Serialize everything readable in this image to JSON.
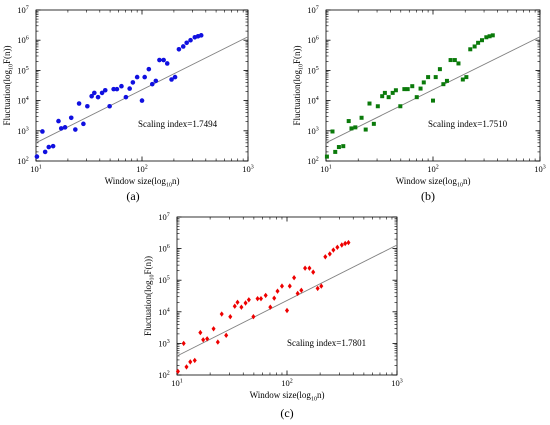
{
  "colors": {
    "axis": "#000000",
    "fit_line": "#808080"
  },
  "chart_data": [
    {
      "id": "a",
      "type": "scatter",
      "panel_label": "(a)",
      "xlabel_base": "Window size(log",
      "xlabel_sub": "10",
      "xlabel_tail": "n)",
      "ylabel_base": "Fluctuation(log",
      "ylabel_sub": "10",
      "ylabel_tail": "F(n))",
      "annotation": "Scaling index=1.7494",
      "xscale": "log",
      "yscale": "log",
      "xlim": [
        10,
        1000
      ],
      "ylim": [
        100,
        10000000
      ],
      "x_ticks": [
        {
          "base": "10",
          "exp": "1"
        },
        {
          "base": "10",
          "exp": "2"
        },
        {
          "base": "10",
          "exp": "3"
        }
      ],
      "y_ticks": [
        {
          "base": "10",
          "exp": "2"
        },
        {
          "base": "10",
          "exp": "3"
        },
        {
          "base": "10",
          "exp": "4"
        },
        {
          "base": "10",
          "exp": "5"
        },
        {
          "base": "10",
          "exp": "6"
        },
        {
          "base": "10",
          "exp": "7"
        }
      ],
      "marker": "circle",
      "color": "#1010e0",
      "fit": {
        "x": [
          10,
          1000
        ],
        "y": [
          400,
          1300000
        ]
      },
      "points": [
        [
          10.2,
          140
        ],
        [
          11.5,
          950
        ],
        [
          12.2,
          200
        ],
        [
          13.2,
          290
        ],
        [
          14.5,
          310
        ],
        [
          16.3,
          2100
        ],
        [
          17.3,
          1200
        ],
        [
          18.8,
          1300
        ],
        [
          21.5,
          2700
        ],
        [
          23.5,
          1100
        ],
        [
          25.5,
          8000
        ],
        [
          28,
          1700
        ],
        [
          30.5,
          6500
        ],
        [
          33.5,
          14000
        ],
        [
          35.5,
          18000
        ],
        [
          38.5,
          13000
        ],
        [
          42,
          18000
        ],
        [
          45,
          22000
        ],
        [
          49.5,
          6500
        ],
        [
          54,
          24000
        ],
        [
          58,
          24000
        ],
        [
          64,
          30000
        ],
        [
          70.5,
          13000
        ],
        [
          76.5,
          25000
        ],
        [
          82,
          40000
        ],
        [
          90,
          60000
        ],
        [
          100,
          10000
        ],
        [
          106,
          60000
        ],
        [
          116,
          110000
        ],
        [
          125,
          35000
        ],
        [
          135,
          45000
        ],
        [
          146,
          220000
        ],
        [
          160,
          220000
        ],
        [
          173,
          170000
        ],
        [
          190,
          50000
        ],
        [
          205,
          60000
        ],
        [
          223,
          500000
        ],
        [
          245,
          620000
        ],
        [
          264,
          820000
        ],
        [
          287,
          1000000
        ],
        [
          315,
          1250000
        ],
        [
          338,
          1350000
        ],
        [
          362,
          1450000
        ]
      ]
    },
    {
      "id": "b",
      "type": "scatter",
      "panel_label": "(b)",
      "xlabel_base": "Window size(log",
      "xlabel_sub": "10",
      "xlabel_tail": "n)",
      "ylabel_base": "Fluctuation(log",
      "ylabel_sub": "10",
      "ylabel_tail": "F(n))",
      "annotation": "Scaling index=1.7510",
      "xscale": "log",
      "yscale": "log",
      "xlim": [
        10,
        1000
      ],
      "ylim": [
        100,
        10000000
      ],
      "x_ticks": [
        {
          "base": "10",
          "exp": "1"
        },
        {
          "base": "10",
          "exp": "2"
        },
        {
          "base": "10",
          "exp": "3"
        }
      ],
      "y_ticks": [
        {
          "base": "10",
          "exp": "2"
        },
        {
          "base": "10",
          "exp": "3"
        },
        {
          "base": "10",
          "exp": "4"
        },
        {
          "base": "10",
          "exp": "5"
        },
        {
          "base": "10",
          "exp": "6"
        },
        {
          "base": "10",
          "exp": "7"
        }
      ],
      "marker": "square",
      "color": "#0a7a0a",
      "fit": {
        "x": [
          10,
          1000
        ],
        "y": [
          400,
          1300000
        ]
      },
      "points": [
        [
          10.2,
          140
        ],
        [
          11.5,
          950
        ],
        [
          12.2,
          200
        ],
        [
          13.2,
          290
        ],
        [
          14.5,
          310
        ],
        [
          16.3,
          2100
        ],
        [
          17.3,
          1200
        ],
        [
          18.8,
          1300
        ],
        [
          21.5,
          2700
        ],
        [
          23.5,
          1100
        ],
        [
          25.5,
          8000
        ],
        [
          28,
          1700
        ],
        [
          30.5,
          6500
        ],
        [
          33.5,
          14000
        ],
        [
          35.5,
          18000
        ],
        [
          38.5,
          13000
        ],
        [
          42,
          18000
        ],
        [
          45,
          22000
        ],
        [
          49.5,
          6500
        ],
        [
          54,
          24000
        ],
        [
          58,
          24000
        ],
        [
          64,
          30000
        ],
        [
          70.5,
          13000
        ],
        [
          76.5,
          25000
        ],
        [
          82,
          40000
        ],
        [
          90,
          60000
        ],
        [
          100,
          10000
        ],
        [
          106,
          60000
        ],
        [
          116,
          110000
        ],
        [
          125,
          35000
        ],
        [
          135,
          45000
        ],
        [
          146,
          220000
        ],
        [
          160,
          220000
        ],
        [
          173,
          170000
        ],
        [
          190,
          50000
        ],
        [
          205,
          60000
        ],
        [
          223,
          500000
        ],
        [
          245,
          620000
        ],
        [
          264,
          820000
        ],
        [
          287,
          1000000
        ],
        [
          315,
          1250000
        ],
        [
          338,
          1350000
        ],
        [
          362,
          1450000
        ]
      ]
    },
    {
      "id": "c",
      "type": "scatter",
      "panel_label": "(c)",
      "xlabel_base": "Window size(log",
      "xlabel_sub": "10",
      "xlabel_tail": "n)",
      "ylabel_base": "Fluctuation(log",
      "ylabel_sub": "10",
      "ylabel_tail": "F(n))",
      "annotation": "Scaling index=1.7801",
      "xscale": "log",
      "yscale": "log",
      "xlim": [
        10,
        1000
      ],
      "ylim": [
        100,
        10000000
      ],
      "x_ticks": [
        {
          "base": "10",
          "exp": "1"
        },
        {
          "base": "10",
          "exp": "2"
        },
        {
          "base": "10",
          "exp": "3"
        }
      ],
      "y_ticks": [
        {
          "base": "10",
          "exp": "2"
        },
        {
          "base": "10",
          "exp": "3"
        },
        {
          "base": "10",
          "exp": "4"
        },
        {
          "base": "10",
          "exp": "5"
        },
        {
          "base": "10",
          "exp": "6"
        },
        {
          "base": "10",
          "exp": "7"
        }
      ],
      "marker": "diamond",
      "color": "#ee0000",
      "fit": {
        "x": [
          10,
          1000
        ],
        "y": [
          400,
          1300000
        ]
      },
      "points": [
        [
          10.2,
          130
        ],
        [
          11.5,
          1000
        ],
        [
          12.2,
          180
        ],
        [
          13.2,
          260
        ],
        [
          14.5,
          290
        ],
        [
          16.3,
          2200
        ],
        [
          17.3,
          1300
        ],
        [
          18.8,
          1400
        ],
        [
          21.5,
          2900
        ],
        [
          23.5,
          1100
        ],
        [
          25.5,
          8500
        ],
        [
          28,
          1800
        ],
        [
          30.5,
          7000
        ],
        [
          33.5,
          15000
        ],
        [
          35.5,
          20000
        ],
        [
          38.5,
          14000
        ],
        [
          42,
          19000
        ],
        [
          45,
          24000
        ],
        [
          49.5,
          7000
        ],
        [
          54,
          26000
        ],
        [
          58,
          26000
        ],
        [
          64,
          33000
        ],
        [
          70.5,
          14000
        ],
        [
          76.5,
          27000
        ],
        [
          82,
          45000
        ],
        [
          90,
          65000
        ],
        [
          100,
          11000
        ],
        [
          106,
          65000
        ],
        [
          116,
          120000
        ],
        [
          125,
          38000
        ],
        [
          135,
          48000
        ],
        [
          146,
          240000
        ],
        [
          160,
          240000
        ],
        [
          173,
          180000
        ],
        [
          190,
          55000
        ],
        [
          205,
          65000
        ],
        [
          223,
          550000
        ],
        [
          245,
          680000
        ],
        [
          264,
          900000
        ],
        [
          287,
          1100000
        ],
        [
          315,
          1300000
        ],
        [
          338,
          1450000
        ],
        [
          362,
          1550000
        ]
      ]
    }
  ]
}
